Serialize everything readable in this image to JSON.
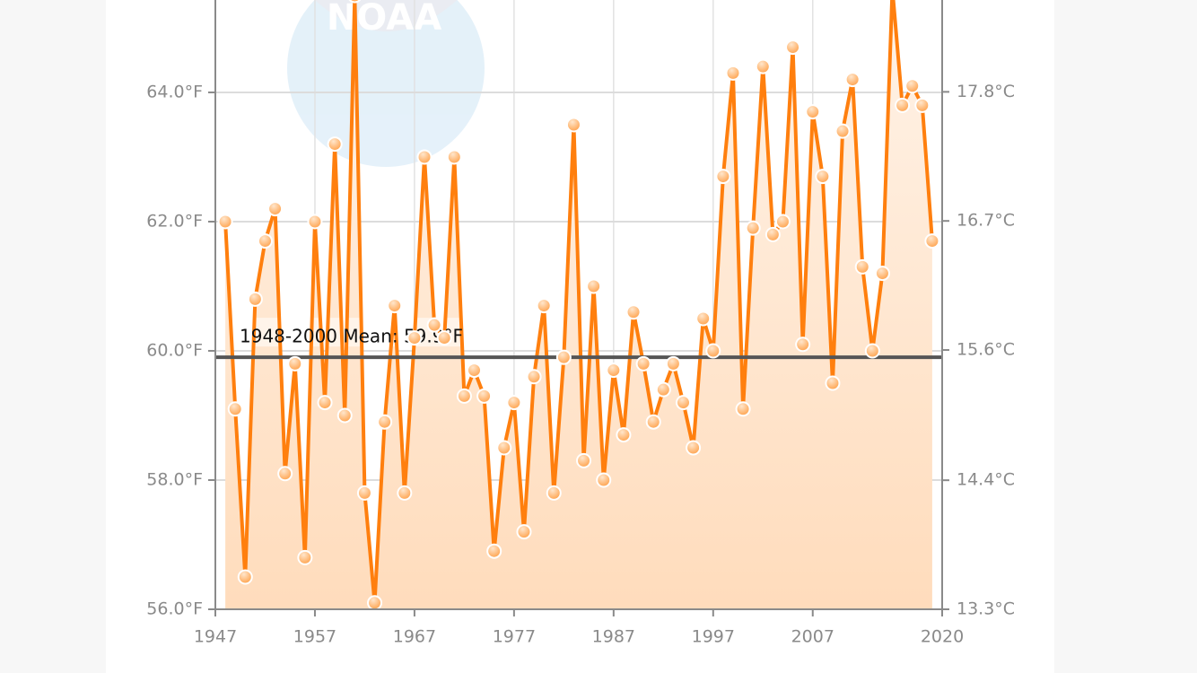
{
  "chart_data": {
    "type": "line",
    "watermark": "NOAA",
    "x": [
      1948,
      1949,
      1950,
      1951,
      1952,
      1953,
      1954,
      1955,
      1956,
      1957,
      1958,
      1959,
      1960,
      1961,
      1962,
      1963,
      1964,
      1965,
      1966,
      1967,
      1968,
      1969,
      1970,
      1971,
      1972,
      1973,
      1974,
      1975,
      1976,
      1977,
      1978,
      1979,
      1980,
      1981,
      1982,
      1983,
      1984,
      1985,
      1986,
      1987,
      1988,
      1989,
      1990,
      1991,
      1992,
      1993,
      1994,
      1995,
      1996,
      1997,
      1998,
      1999,
      2000,
      2001,
      2002,
      2003,
      2004,
      2005,
      2006,
      2007,
      2008,
      2009,
      2010,
      2011,
      2012,
      2013,
      2014,
      2015,
      2016,
      2017,
      2018,
      2019
    ],
    "values": [
      62.0,
      59.1,
      56.5,
      60.8,
      61.7,
      62.2,
      58.1,
      59.8,
      56.8,
      62.0,
      59.2,
      63.2,
      59.0,
      65.5,
      57.8,
      56.1,
      58.9,
      60.7,
      57.8,
      60.2,
      63.0,
      60.4,
      60.2,
      63.0,
      59.3,
      59.7,
      59.3,
      56.9,
      58.5,
      59.2,
      57.2,
      59.6,
      60.7,
      57.8,
      59.9,
      63.5,
      58.3,
      61.0,
      58.0,
      59.7,
      58.7,
      60.6,
      59.8,
      58.9,
      59.4,
      59.8,
      59.2,
      58.5,
      60.5,
      60.0,
      62.7,
      64.3,
      59.1,
      61.9,
      64.4,
      61.8,
      62.0,
      64.7,
      60.1,
      63.7,
      62.7,
      59.5,
      63.4,
      64.2,
      61.3,
      60.0,
      61.2,
      65.6,
      63.8,
      64.1,
      63.8,
      61.7
    ],
    "color": "#ff7f0e",
    "mean": {
      "value": 59.9,
      "label": "1948-2000 Mean: 59.9°F"
    },
    "xlim": [
      1947,
      2020
    ],
    "xticks": [
      1947,
      1957,
      1967,
      1977,
      1987,
      1997,
      2007,
      2020
    ],
    "ylim": [
      56,
      65.43
    ],
    "yticks": [
      {
        "value": 56,
        "label": "56.0°F"
      },
      {
        "value": 58,
        "label": "58.0°F"
      },
      {
        "value": 60,
        "label": "60.0°F"
      },
      {
        "value": 62,
        "label": "62.0°F"
      },
      {
        "value": 64,
        "label": "64.0°F"
      }
    ],
    "y2lim": [
      13.33,
      18.57
    ],
    "y2ticks": [
      {
        "value": 13.33,
        "label": "13.3°C"
      },
      {
        "value": 14.44,
        "label": "14.4°C"
      },
      {
        "value": 15.56,
        "label": "15.6°C"
      },
      {
        "value": 16.67,
        "label": "16.7°C"
      },
      {
        "value": 17.78,
        "label": "17.8°C"
      }
    ],
    "grid": true
  }
}
